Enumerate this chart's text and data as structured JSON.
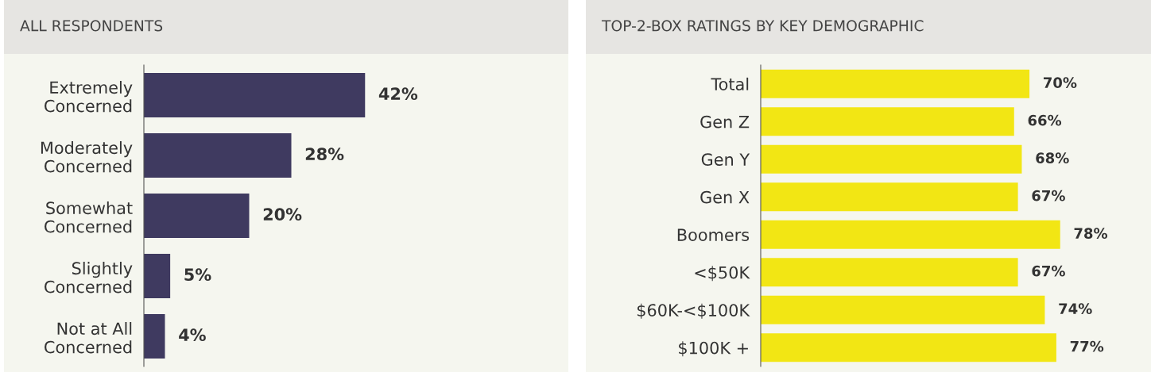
{
  "chart_data": [
    {
      "type": "bar",
      "orientation": "horizontal",
      "title": "ALL RESPONDENTS",
      "categories": [
        "Extremely\nConcerned",
        "Moderately\nConcerned",
        "Somewhat\nConcerned",
        "Slightly\nConcerned",
        "Not at All\nConcerned"
      ],
      "values": [
        42,
        28,
        20,
        5,
        4
      ],
      "color": "#3f3a60",
      "value_labels": [
        "42%",
        "28%",
        "20%",
        "5%",
        "4%"
      ],
      "tick_labels": "y",
      "grid": false,
      "legend": false
    },
    {
      "type": "bar",
      "orientation": "horizontal",
      "title": "TOP-2-BOX RATINGS BY KEY DEMOGRAPHIC",
      "categories": [
        "Total",
        "Gen Z",
        "Gen Y",
        "Gen X",
        "Boomers",
        "<$50K",
        "$60K-<$100K",
        "$100K +"
      ],
      "values": [
        70,
        66,
        68,
        67,
        78,
        67,
        74,
        77
      ],
      "color": "#f2e614",
      "value_labels": [
        "70%",
        "66%",
        "68%",
        "67%",
        "78%",
        "67%",
        "74%",
        "77%"
      ],
      "tick_labels": "y",
      "grid": false,
      "legend": false
    }
  ]
}
